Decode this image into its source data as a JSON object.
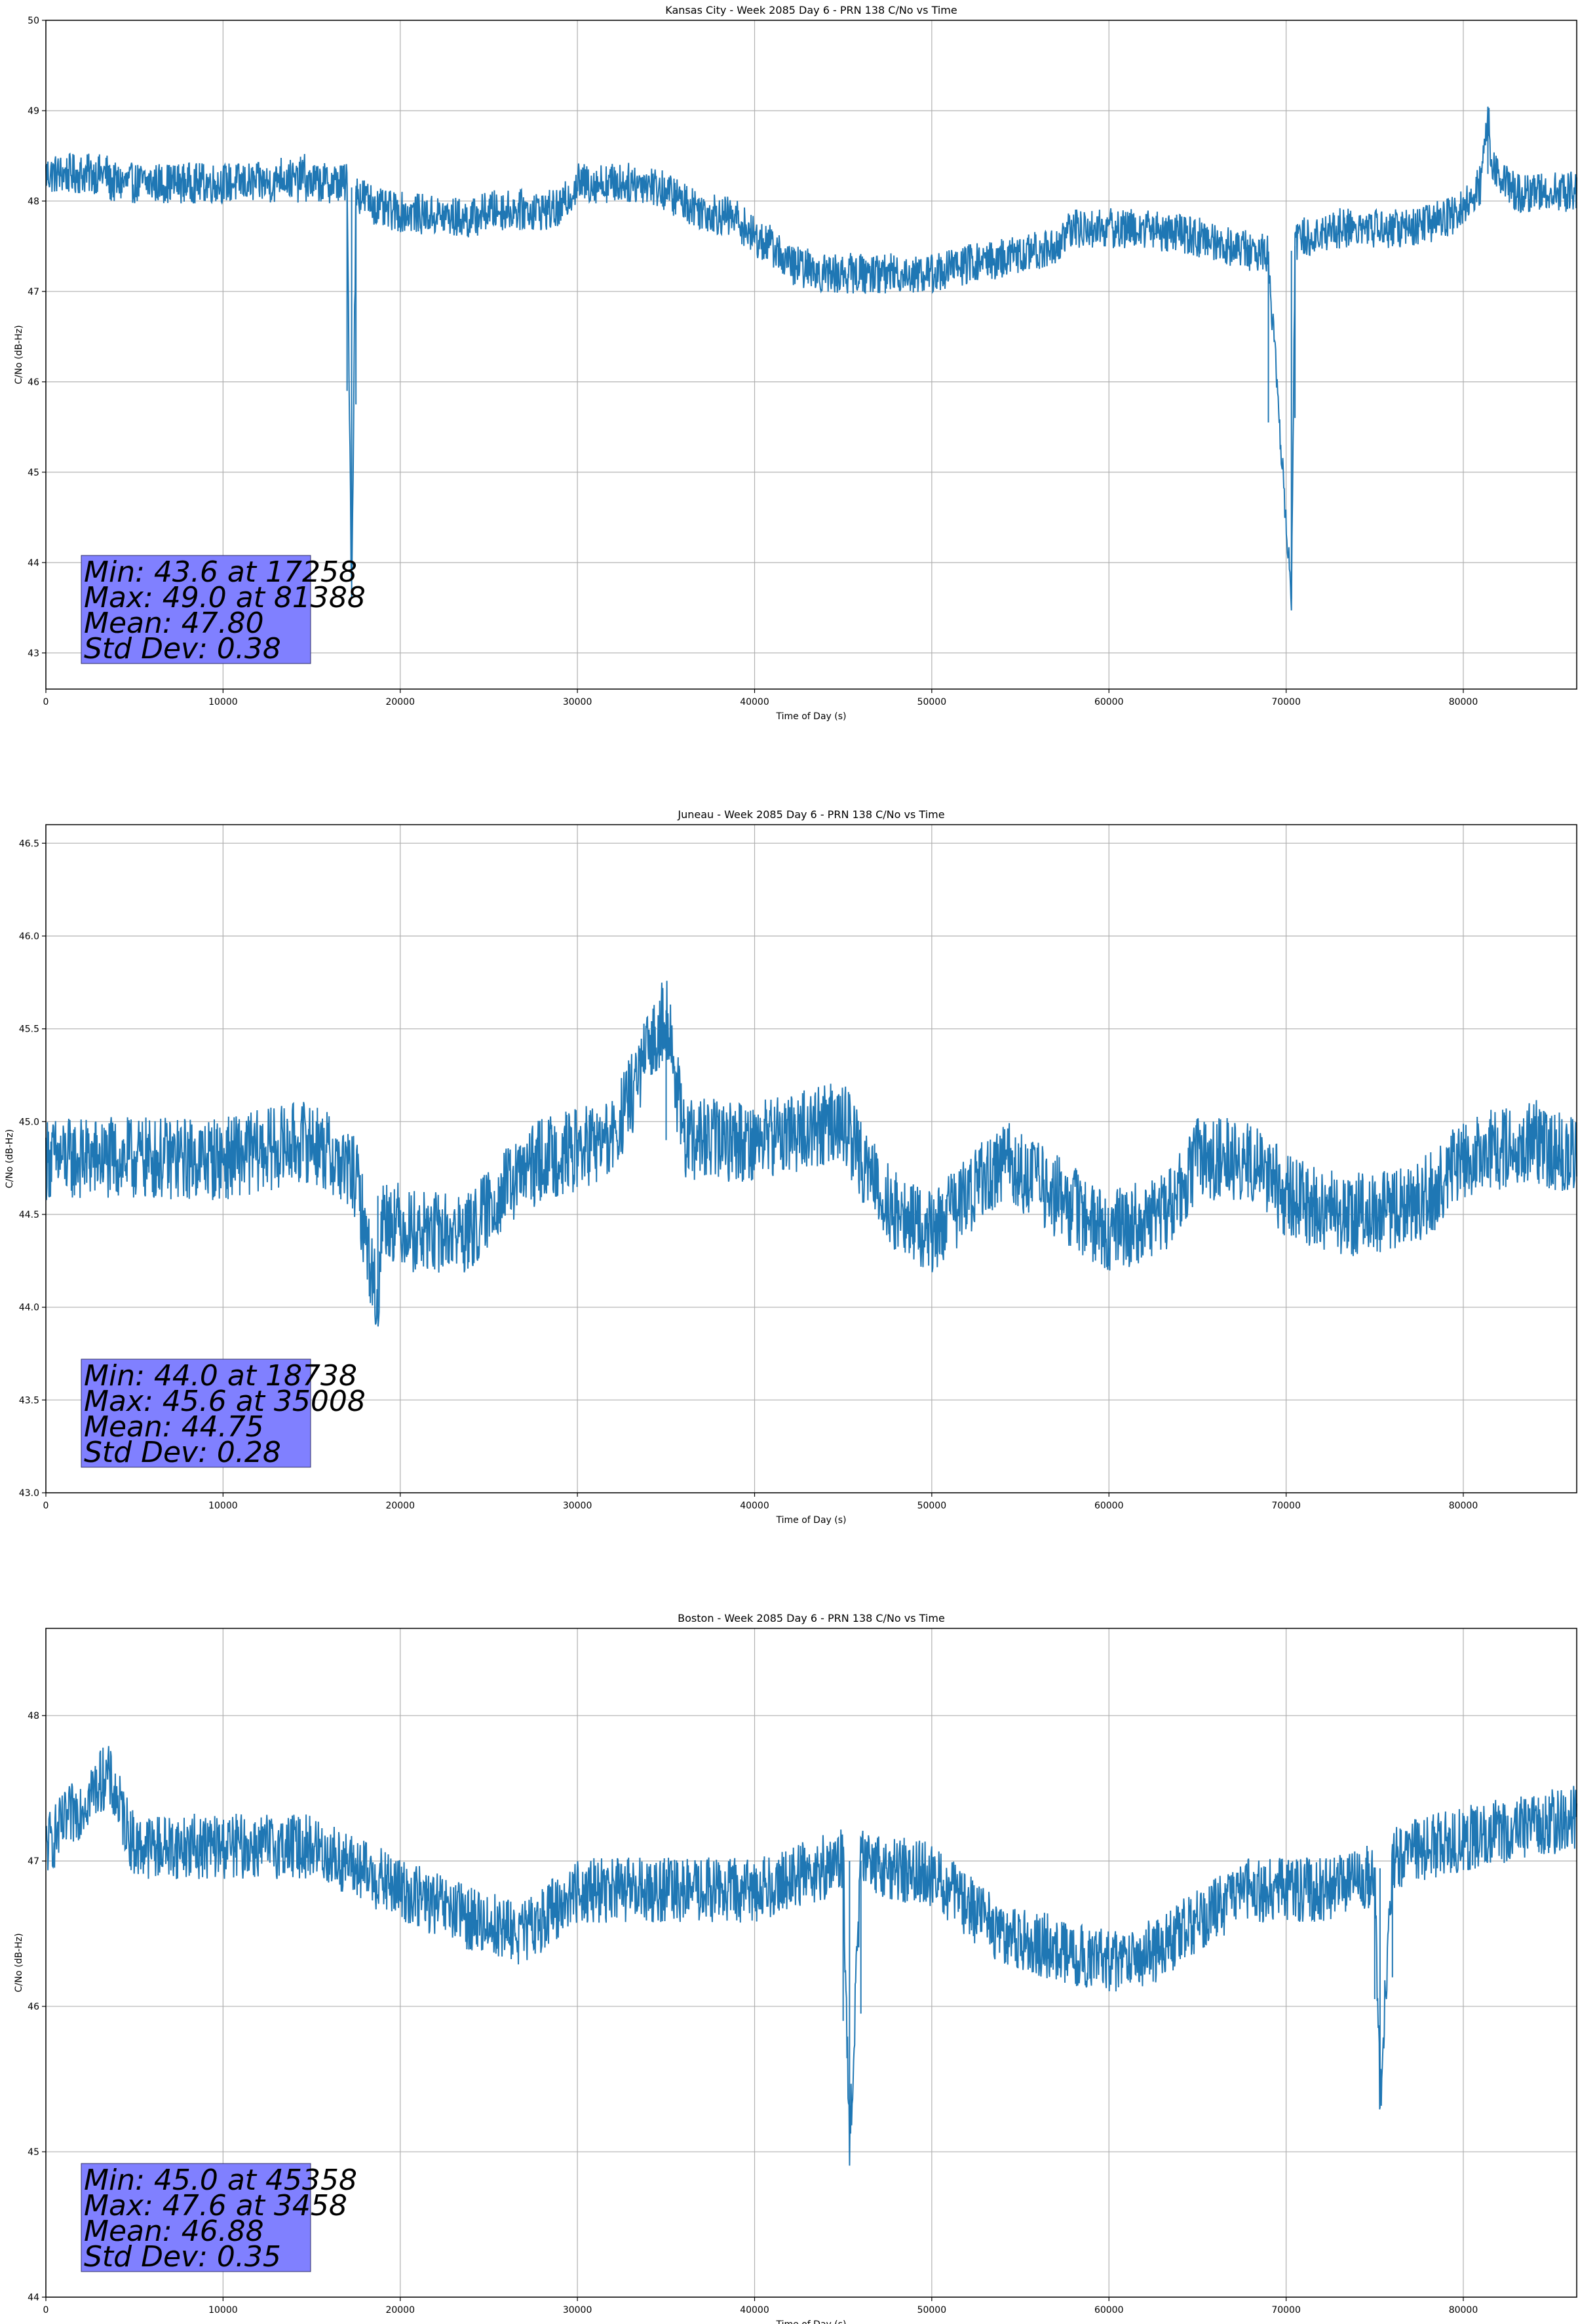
{
  "colors": {
    "series": "#1f77b4",
    "grid": "#b0b0b0",
    "stats_box_fill": "#8080ff",
    "axes": "#000000"
  },
  "chart_data": [
    {
      "type": "line",
      "title": "Kansas City - Week 2085 Day 6 - PRN 138 C/No vs Time",
      "xlabel": "Time of Day (s)",
      "ylabel": "C/No (dB-Hz)",
      "xlim": [
        0,
        86400
      ],
      "ylim": [
        42.6,
        50
      ],
      "xticks": [
        0,
        10000,
        20000,
        30000,
        40000,
        50000,
        60000,
        70000,
        80000
      ],
      "xtick_labels": [
        "0",
        "10000",
        "20000",
        "30000",
        "40000",
        "50000",
        "60000",
        "70000",
        "80000"
      ],
      "yticks": [
        43,
        44,
        45,
        46,
        47,
        48,
        49,
        50
      ],
      "ytick_labels": [
        "43",
        "44",
        "45",
        "46",
        "47",
        "48",
        "49",
        "50"
      ],
      "grid": true,
      "legend": "none",
      "annotation": [
        "Min: 43.6 at 17258",
        "Max: 49.0 at 81388",
        "Mean: 47.80",
        "Std Dev: 0.38"
      ],
      "series": [
        {
          "x": [
            0,
            3500,
            3600,
            13000,
            13100,
            14300,
            14400,
            14600,
            14700,
            17000,
            17258,
            17500,
            19000,
            24000,
            25000,
            29000,
            30000,
            34000,
            35000,
            36000,
            37000,
            39000,
            40000,
            41000,
            42000,
            44000,
            46000,
            48000,
            50000,
            52000,
            55000,
            57000,
            58000,
            60000,
            62000,
            65000,
            67000,
            69000,
            70300,
            70500,
            71000,
            73000,
            75000,
            77000,
            79000,
            80000,
            81000,
            81388,
            81600,
            82500,
            83000,
            86400
          ],
          "y": [
            48.3,
            48.3,
            48.2,
            48.2,
            48.3,
            48.2,
            48.3,
            48.3,
            48.2,
            48.2,
            43.6,
            48.1,
            47.9,
            47.8,
            47.9,
            47.9,
            48.2,
            48.2,
            48.1,
            48.0,
            47.9,
            47.8,
            47.6,
            47.5,
            47.3,
            47.2,
            47.2,
            47.2,
            47.2,
            47.3,
            47.4,
            47.5,
            47.7,
            47.7,
            47.7,
            47.6,
            47.5,
            47.4,
            43.6,
            47.5,
            47.6,
            47.7,
            47.7,
            47.7,
            47.8,
            47.9,
            48.2,
            49.0,
            48.4,
            48.2,
            48.1,
            48.1
          ]
        }
      ]
    },
    {
      "type": "line",
      "title": "Juneau - Week 2085 Day 6 - PRN 138 C/No vs Time",
      "xlabel": "Time of Day (s)",
      "ylabel": "C/No (dB-Hz)",
      "xlim": [
        0,
        86400
      ],
      "ylim": [
        43.0,
        46.6
      ],
      "xticks": [
        0,
        10000,
        20000,
        30000,
        40000,
        50000,
        60000,
        70000,
        80000
      ],
      "xtick_labels": [
        "0",
        "10000",
        "20000",
        "30000",
        "40000",
        "50000",
        "60000",
        "70000",
        "80000"
      ],
      "yticks": [
        43.0,
        43.5,
        44.0,
        44.5,
        45.0,
        45.5,
        46.0,
        46.5
      ],
      "ytick_labels": [
        "43.0",
        "43.5",
        "44.0",
        "44.5",
        "45.0",
        "45.5",
        "46.0",
        "46.5"
      ],
      "grid": true,
      "legend": "none",
      "annotation": [
        "Min: 44.0 at 18738",
        "Max: 45.6 at 35008",
        "Mean: 44.75",
        "Std Dev: 0.28"
      ],
      "series": [
        {
          "x": [
            0,
            5000,
            10000,
            15000,
            17500,
            18738,
            19000,
            21000,
            24000,
            25500,
            28000,
            32000,
            35008,
            36000,
            40000,
            45000,
            46000,
            48000,
            50000,
            52000,
            54000,
            57000,
            60000,
            63000,
            65000,
            68000,
            70000,
            73000,
            75000,
            78000,
            80000,
            84000,
            86400
          ],
          "y": [
            44.8,
            44.8,
            44.8,
            44.9,
            44.7,
            44.0,
            44.5,
            44.4,
            44.4,
            44.6,
            44.8,
            44.9,
            45.6,
            44.9,
            44.9,
            45.0,
            44.8,
            44.5,
            44.4,
            44.6,
            44.8,
            44.6,
            44.4,
            44.5,
            44.8,
            44.8,
            44.6,
            44.5,
            44.5,
            44.6,
            44.8,
            44.9,
            44.8
          ]
        }
      ]
    },
    {
      "type": "line",
      "title": "Boston - Week 2085 Day 6 - PRN 138 C/No vs Time",
      "xlabel": "Time of Day (s)",
      "ylabel": "C/No (dB-Hz)",
      "xlim": [
        0,
        86400
      ],
      "ylim": [
        44.0,
        48.6
      ],
      "xticks": [
        0,
        10000,
        20000,
        30000,
        40000,
        50000,
        60000,
        70000,
        80000
      ],
      "xtick_labels": [
        "0",
        "10000",
        "20000",
        "30000",
        "40000",
        "50000",
        "60000",
        "70000",
        "80000"
      ],
      "yticks": [
        44,
        45,
        46,
        47,
        48
      ],
      "ytick_labels": [
        "44",
        "45",
        "46",
        "47",
        "48"
      ],
      "grid": true,
      "legend": "none",
      "annotation": [
        "Min: 45.0 at 45358",
        "Max: 47.6 at 3458",
        "Mean: 46.88",
        "Std Dev: 0.35"
      ],
      "series": [
        {
          "x": [
            0,
            3458,
            5000,
            10000,
            15000,
            20000,
            24000,
            27000,
            30000,
            35000,
            40000,
            45000,
            45358,
            46000,
            50000,
            52000,
            54000,
            57000,
            60000,
            63000,
            65000,
            68000,
            72000,
            75000,
            75300,
            76000,
            78000,
            82000,
            86400
          ],
          "y": [
            47.1,
            47.6,
            47.1,
            47.1,
            47.1,
            46.8,
            46.6,
            46.5,
            46.8,
            46.8,
            46.8,
            47.0,
            45.0,
            47.0,
            46.9,
            46.7,
            46.5,
            46.4,
            46.3,
            46.4,
            46.6,
            46.8,
            46.8,
            46.9,
            45.3,
            47.0,
            47.1,
            47.2,
            47.3
          ]
        }
      ]
    }
  ]
}
